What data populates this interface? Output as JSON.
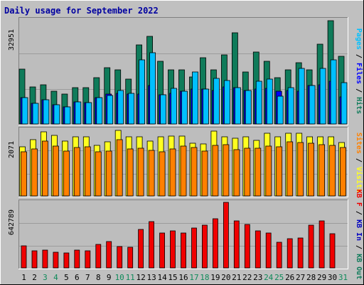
{
  "colors": {
    "background": "#c0c0c0",
    "panel": "#bdbdbd",
    "grid": "#9c9c9c",
    "title": "#0000a0",
    "pages": "#00c0ff",
    "files": "#0000ff",
    "hits": "#0f7b5a",
    "visits": "#ffff20",
    "sites": "#ff8000",
    "kb": "#f00000",
    "kb_in": "#0000c0",
    "kb_out": "#0f7b5a",
    "weekend_label": "#0f8a5a",
    "weekday_label": "#000000"
  },
  "chart_data": {
    "type": "bar",
    "title": "Daily usage for September 2022",
    "categories": [
      "1",
      "2",
      "3",
      "4",
      "5",
      "6",
      "7",
      "8",
      "9",
      "10",
      "11",
      "12",
      "13",
      "14",
      "15",
      "16",
      "17",
      "18",
      "19",
      "20",
      "21",
      "22",
      "23",
      "24",
      "25",
      "26",
      "27",
      "28",
      "29",
      "30",
      "31"
    ],
    "weekend_days": [
      "3",
      "4",
      "10",
      "11",
      "17",
      "18",
      "24",
      "25",
      "31"
    ],
    "panels": [
      {
        "id": "top",
        "max_label": "32951",
        "ylim": [
          0,
          32951
        ],
        "legend": [
          {
            "text": "Pages",
            "color_key": "pages"
          },
          {
            "text": " / ",
            "color_key": "weekday_label"
          },
          {
            "text": "Files",
            "color_key": "files"
          },
          {
            "text": " / ",
            "color_key": "weekday_label"
          },
          {
            "text": "Hits",
            "color_key": "hits"
          }
        ],
        "series": [
          {
            "name": "Hits",
            "color_key": "hits",
            "values": [
              17400,
              11800,
              12400,
              10400,
              9400,
              11600,
              11600,
              14600,
              17800,
              17200,
              14300,
              25100,
              27800,
              19800,
              17100,
              17100,
              14900,
              20900,
              17100,
              21900,
              28900,
              16400,
              22900,
              19800,
              14700,
              17100,
              19500,
              17100,
              25300,
              32700,
              21400
            ]
          },
          {
            "name": "Files",
            "color_key": "files",
            "values": [
              8400,
              6500,
              7700,
              6200,
              5400,
              6900,
              6700,
              8400,
              9500,
              9700,
              9500,
              9500,
              12300,
              9300,
              9700,
              10400,
              11000,
              11000,
              10700,
              11800,
              11600,
              10700,
              11000,
              11200,
              10400,
              10500,
              10400,
              12300,
              12500,
              13600,
              8600
            ]
          },
          {
            "name": "Pages",
            "color_key": "pages",
            "values": [
              8400,
              6500,
              7700,
              6200,
              5400,
              6900,
              6700,
              8400,
              9000,
              10700,
              9600,
              20200,
              22600,
              9300,
              11200,
              10400,
              16500,
              11000,
              14400,
              13800,
              11600,
              10700,
              13500,
              14200,
              8800,
              11500,
              17700,
              12300,
              17700,
              20300,
              13200
            ]
          }
        ]
      },
      {
        "id": "middle",
        "max_label": "2071",
        "ylim": [
          0,
          2071
        ],
        "legend": [
          {
            "text": "Sites",
            "color_key": "sites"
          },
          {
            "text": " / ",
            "color_key": "weekday_label"
          },
          {
            "text": "Visits",
            "color_key": "visits"
          }
        ],
        "series": [
          {
            "name": "Visits",
            "color_key": "visits",
            "values": [
              1530,
              1760,
              2010,
              1900,
              1720,
              1850,
              1850,
              1590,
              1700,
              2050,
              1840,
              1840,
              1710,
              1840,
              1870,
              1860,
              1650,
              1630,
              2020,
              1850,
              1810,
              1850,
              1730,
              1960,
              1840,
              1950,
              1950,
              1850,
              1840,
              1840,
              1660
            ]
          },
          {
            "name": "Sites",
            "color_key": "sites",
            "values": [
              1380,
              1470,
              1720,
              1550,
              1410,
              1510,
              1540,
              1380,
              1400,
              1760,
              1470,
              1500,
              1420,
              1390,
              1480,
              1550,
              1510,
              1400,
              1590,
              1610,
              1440,
              1490,
              1490,
              1560,
              1540,
              1690,
              1670,
              1640,
              1610,
              1590,
              1510
            ]
          }
        ]
      },
      {
        "id": "bottom",
        "max_label": "642789",
        "ylim": [
          0,
          642789
        ],
        "legend": [
          {
            "text": "KB F",
            "color_key": "kb"
          },
          {
            "text": " / ",
            "color_key": "weekday_label"
          },
          {
            "text": "KB In",
            "color_key": "kb_in"
          },
          {
            "text": " / ",
            "color_key": "weekday_label"
          },
          {
            "text": "KB Out",
            "color_key": "kb_out"
          }
        ],
        "series": [
          {
            "name": "KB F",
            "color_key": "kb",
            "values": [
              216000,
              167000,
              178000,
              156000,
              149000,
              172000,
              167000,
              233000,
              260000,
              211000,
              200000,
              377000,
              457000,
              344000,
              366000,
              344000,
              393000,
              421000,
              482000,
              642789,
              460000,
              427000,
              366000,
              344000,
              255000,
              283000,
              294000,
              421000,
              460000,
              333000,
              0
            ]
          }
        ]
      }
    ]
  }
}
